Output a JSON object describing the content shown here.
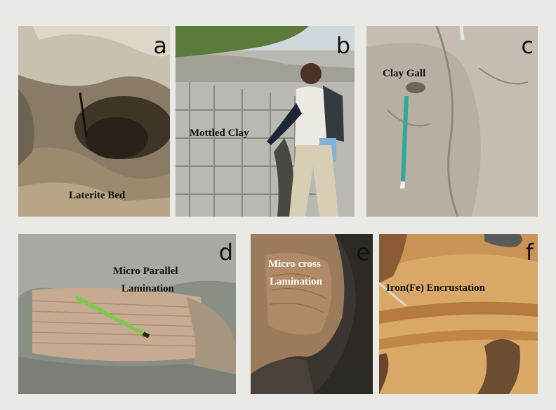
{
  "panels": [
    {
      "letter": "a",
      "caption": "Laterite Bed"
    },
    {
      "letter": "b",
      "caption": "Mottled Clay"
    },
    {
      "letter": "c",
      "caption": "Clay Gall"
    },
    {
      "letter": "d",
      "caption_line1": "Micro Parallel",
      "caption_line2": "Lamination"
    },
    {
      "letter": "e",
      "caption_line1": "Micro cross",
      "caption_line2": "Lamination"
    },
    {
      "letter": "f",
      "caption": "Iron(Fe) Encrustation"
    }
  ]
}
